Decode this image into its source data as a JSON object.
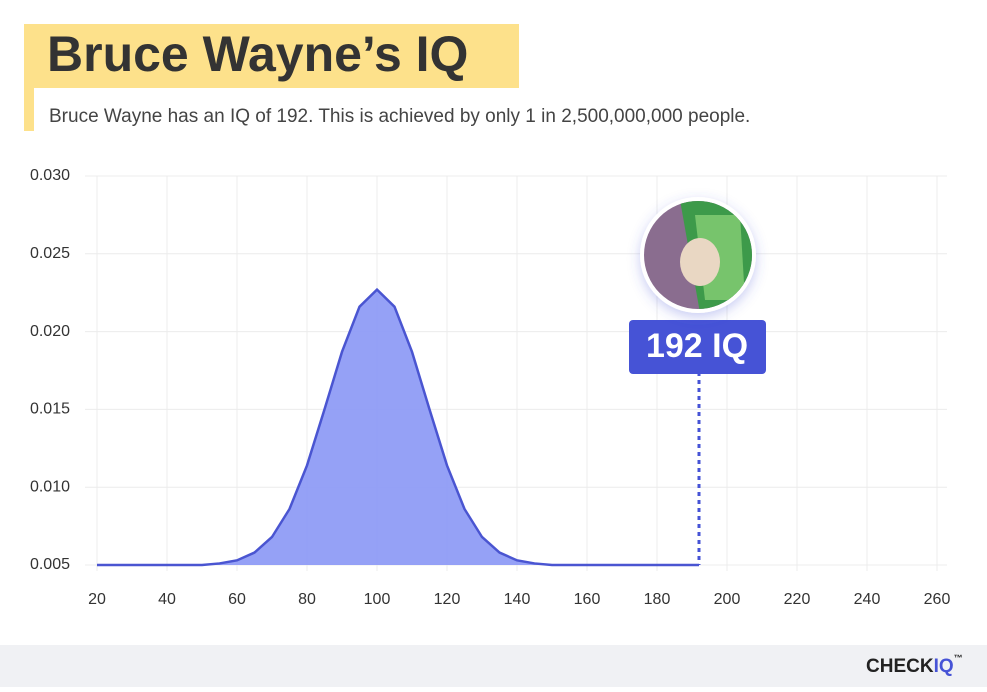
{
  "chart_data": {
    "type": "area",
    "title": "Bruce Wayne’s IQ",
    "subtitle": "Bruce Wayne has an IQ of 192. This is achieved by only 1 in 2,500,000,000 people.",
    "x": [
      20,
      30,
      40,
      50,
      55,
      60,
      65,
      70,
      75,
      80,
      85,
      90,
      95,
      100,
      105,
      110,
      115,
      120,
      125,
      130,
      135,
      140,
      145,
      150,
      160,
      170,
      180,
      192
    ],
    "values": [
      0.005,
      0.005,
      0.005,
      0.005,
      0.0051,
      0.0053,
      0.0058,
      0.0068,
      0.0086,
      0.0114,
      0.015,
      0.0187,
      0.0216,
      0.0227,
      0.0216,
      0.0187,
      0.015,
      0.0114,
      0.0086,
      0.0068,
      0.0058,
      0.0053,
      0.0051,
      0.005,
      0.005,
      0.005,
      0.005,
      0.005
    ],
    "color": "#4a55d1",
    "fill": "#8f9cf5",
    "xlim": [
      20,
      260
    ],
    "xticks": [
      20,
      40,
      60,
      80,
      100,
      120,
      140,
      160,
      180,
      200,
      220,
      240,
      260
    ],
    "ylim": [
      0.005,
      0.03
    ],
    "yticks": [
      {
        "value": 0.005,
        "label": "0.005"
      },
      {
        "value": 0.01,
        "label": "0.010"
      },
      {
        "value": 0.015,
        "label": "0.015"
      },
      {
        "value": 0.02,
        "label": "0.020"
      },
      {
        "value": 0.025,
        "label": "0.025"
      },
      {
        "value": 0.03,
        "label": "0.030"
      }
    ],
    "grid": true,
    "marker": {
      "x": 192,
      "label": "192 IQ",
      "color": "#4653d6"
    },
    "logo": {
      "text": "CHECK",
      "accent": "IQ",
      "mark": "™"
    }
  }
}
